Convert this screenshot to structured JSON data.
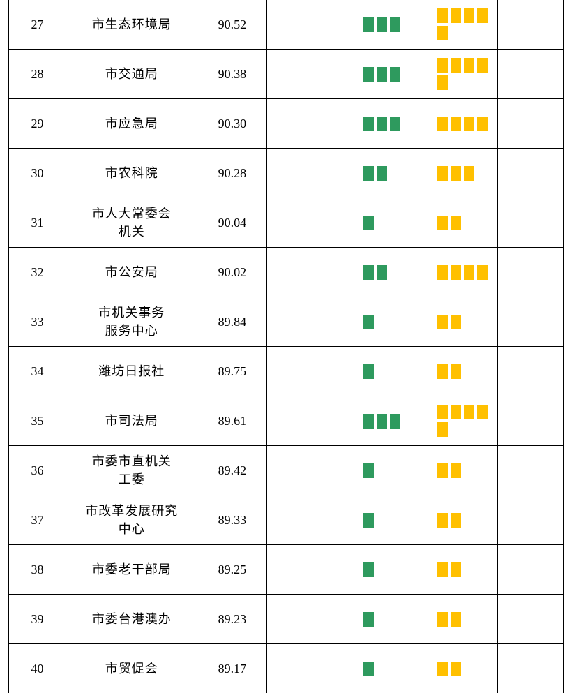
{
  "table": {
    "rows": [
      {
        "rank": "27",
        "name": [
          "市生态环境局"
        ],
        "score": "90.52",
        "green": 3,
        "yellow": 5
      },
      {
        "rank": "28",
        "name": [
          "市交通局"
        ],
        "score": "90.38",
        "green": 3,
        "yellow": 5
      },
      {
        "rank": "29",
        "name": [
          "市应急局"
        ],
        "score": "90.30",
        "green": 3,
        "yellow": 4
      },
      {
        "rank": "30",
        "name": [
          "市农科院"
        ],
        "score": "90.28",
        "green": 2,
        "yellow": 3
      },
      {
        "rank": "31",
        "name": [
          "市人大常委会",
          "机关"
        ],
        "score": "90.04",
        "green": 1,
        "yellow": 2
      },
      {
        "rank": "32",
        "name": [
          "市公安局"
        ],
        "score": "90.02",
        "green": 2,
        "yellow": 4
      },
      {
        "rank": "33",
        "name": [
          "市机关事务",
          "服务中心"
        ],
        "score": "89.84",
        "green": 1,
        "yellow": 2
      },
      {
        "rank": "34",
        "name": [
          "潍坊日报社"
        ],
        "score": "89.75",
        "green": 1,
        "yellow": 2
      },
      {
        "rank": "35",
        "name": [
          "市司法局"
        ],
        "score": "89.61",
        "green": 3,
        "yellow": 5
      },
      {
        "rank": "36",
        "name": [
          "市委市直机关",
          "工委"
        ],
        "score": "89.42",
        "green": 1,
        "yellow": 2
      },
      {
        "rank": "37",
        "name": [
          "市改革发展研究",
          "中心"
        ],
        "score": "89.33",
        "green": 1,
        "yellow": 2
      },
      {
        "rank": "38",
        "name": [
          "市委老干部局"
        ],
        "score": "89.25",
        "green": 1,
        "yellow": 2
      },
      {
        "rank": "39",
        "name": [
          "市委台港澳办"
        ],
        "score": "89.23",
        "green": 1,
        "yellow": 2
      },
      {
        "rank": "40",
        "name": [
          "市贸促会"
        ],
        "score": "89.17",
        "green": 1,
        "yellow": 2
      }
    ],
    "colors": {
      "green_block": "#2e9a5e",
      "yellow_block": "#ffc000"
    }
  }
}
